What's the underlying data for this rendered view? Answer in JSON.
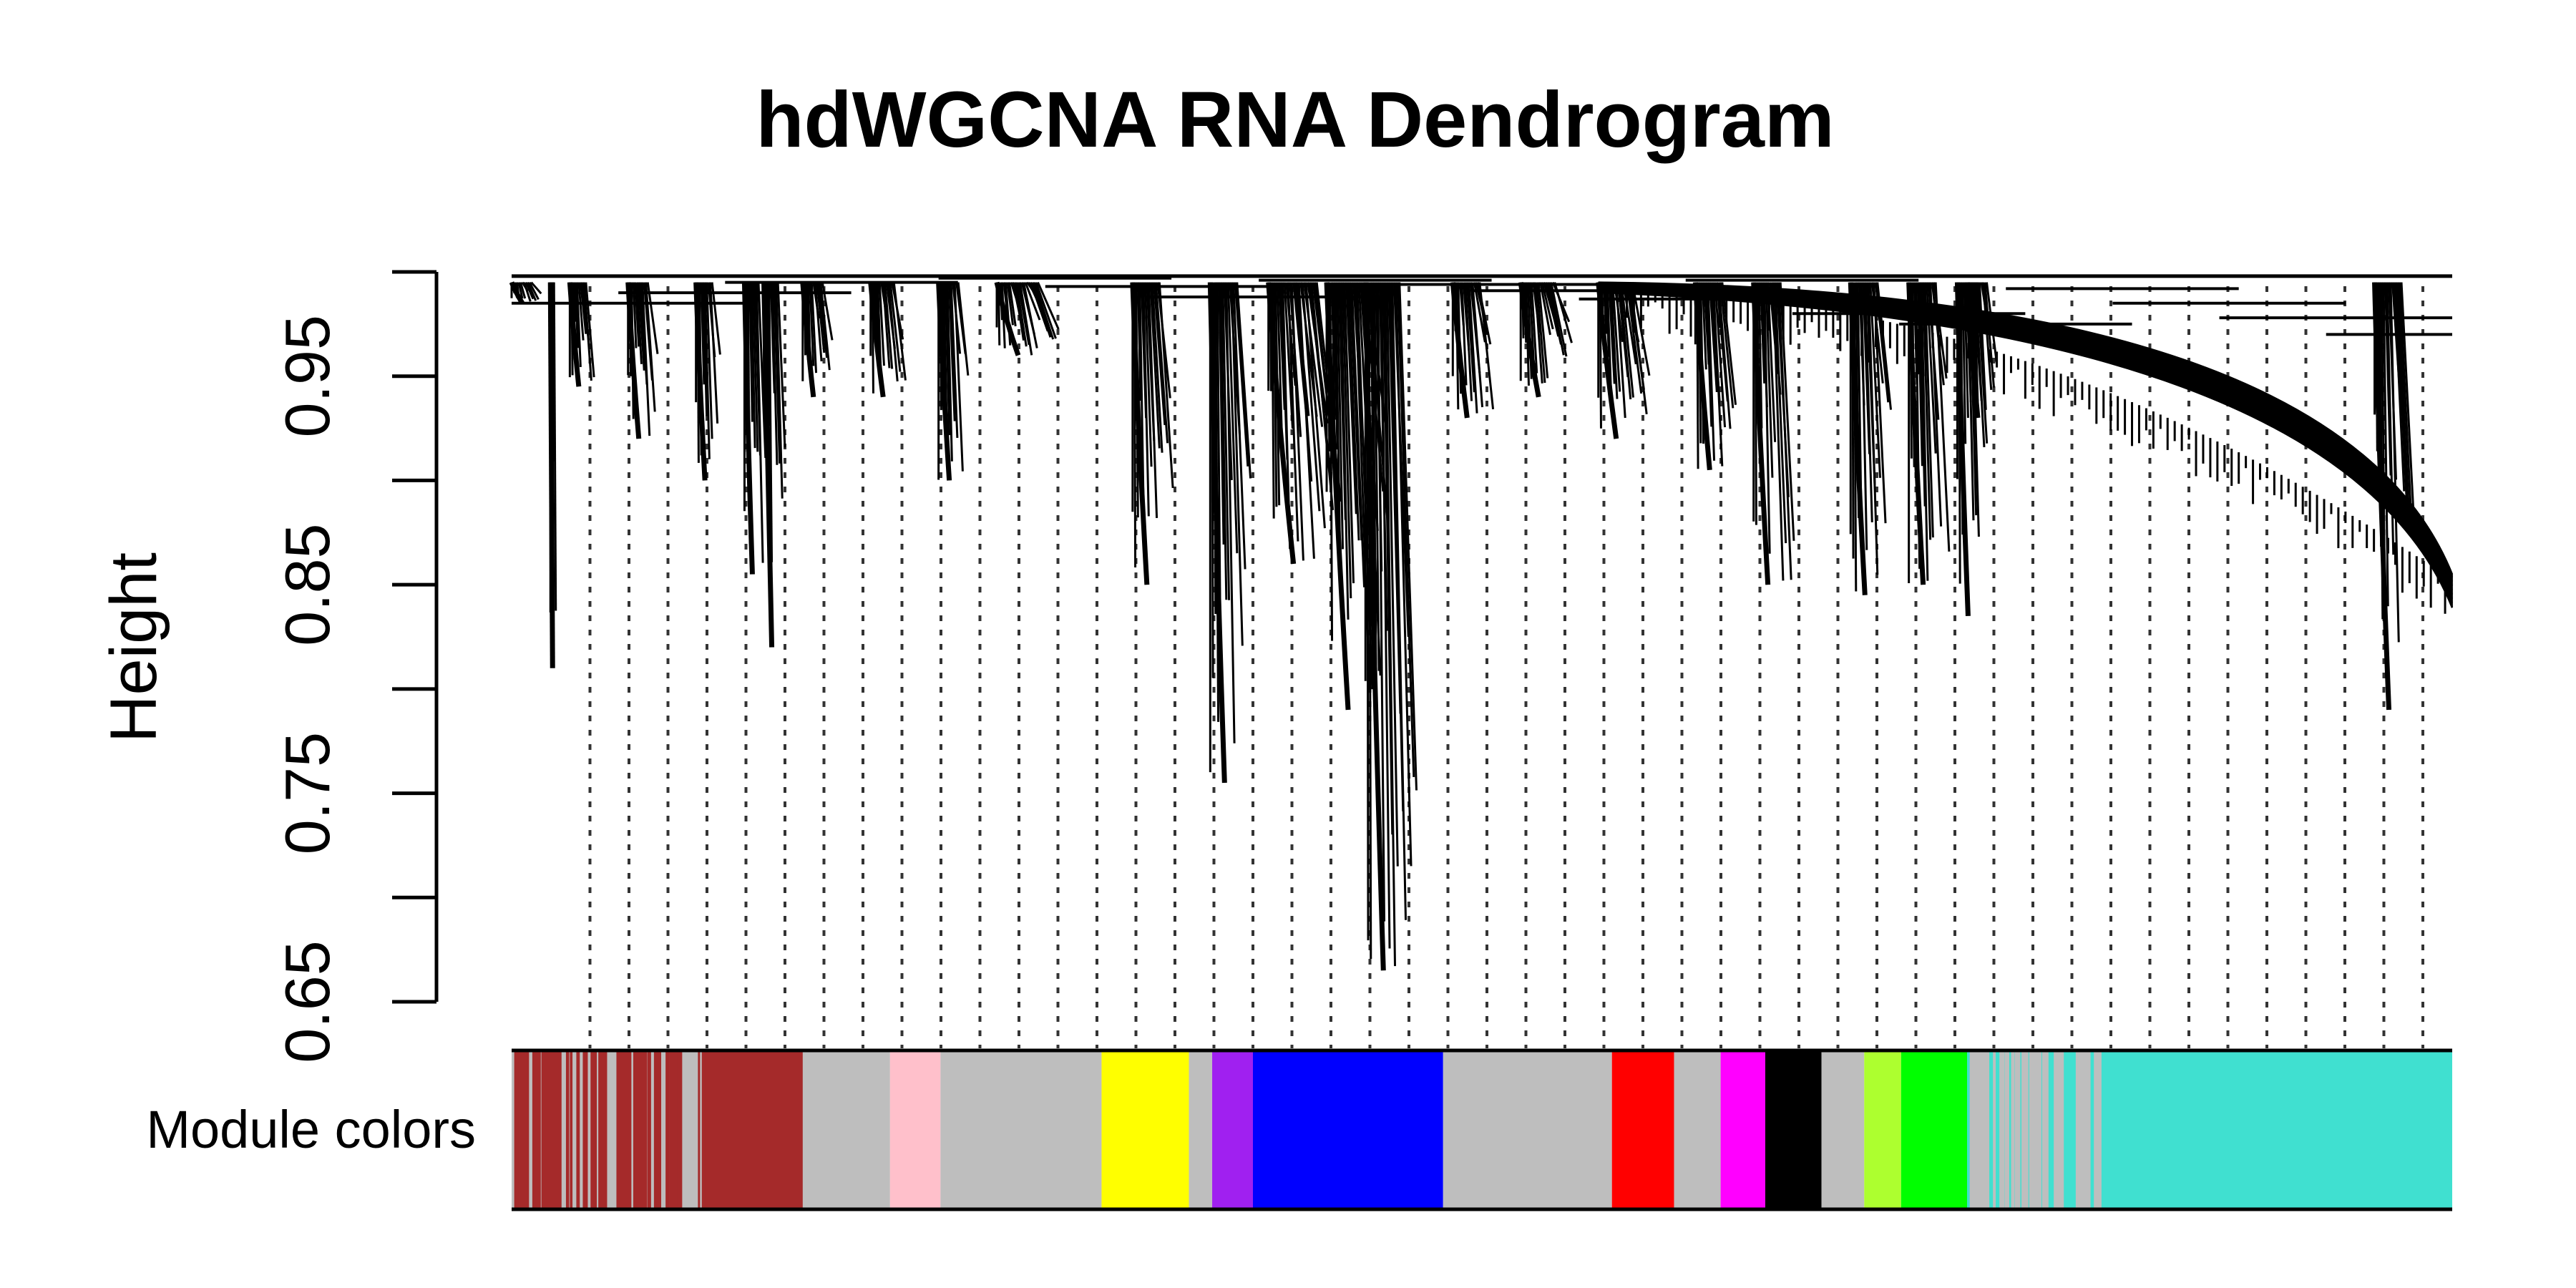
{
  "chart_data": {
    "type": "dendrogram",
    "title": "hdWGCNA RNA Dendrogram",
    "ylabel": "Height",
    "ylim": [
      0.65,
      1.0
    ],
    "yticks": [
      {
        "value": 0.65,
        "label": "0.65"
      },
      {
        "value": 0.7,
        "label": ""
      },
      {
        "value": 0.75,
        "label": "0.75"
      },
      {
        "value": 0.8,
        "label": ""
      },
      {
        "value": 0.85,
        "label": "0.85"
      },
      {
        "value": 0.9,
        "label": ""
      },
      {
        "value": 0.95,
        "label": "0.95"
      },
      {
        "value": 1.0,
        "label": ""
      }
    ],
    "module_colors_label": "Module colors",
    "n_leaves": 1000,
    "module_bar": [
      {
        "color": "#bebebe",
        "start": 0,
        "end": 150,
        "mixed_with": "#a52a2a",
        "mix_density": 0.35
      },
      {
        "color": "#a52a2a",
        "start": 100,
        "end": 150
      },
      {
        "color": "#bebebe",
        "start": 150,
        "end": 195
      },
      {
        "color": "#ffc0cb",
        "start": 195,
        "end": 221
      },
      {
        "color": "#bebebe",
        "start": 221,
        "end": 304
      },
      {
        "color": "#ffff00",
        "start": 304,
        "end": 349
      },
      {
        "color": "#bebebe",
        "start": 349,
        "end": 361
      },
      {
        "color": "#a020f0",
        "start": 361,
        "end": 382
      },
      {
        "color": "#0000ff",
        "start": 382,
        "end": 480
      },
      {
        "color": "#bebebe",
        "start": 480,
        "end": 567
      },
      {
        "color": "#ff0000",
        "start": 567,
        "end": 599
      },
      {
        "color": "#bebebe",
        "start": 599,
        "end": 623
      },
      {
        "color": "#ff00ff",
        "start": 623,
        "end": 646
      },
      {
        "color": "#000000",
        "start": 646,
        "end": 675
      },
      {
        "color": "#bebebe",
        "start": 675,
        "end": 697
      },
      {
        "color": "#adff2f",
        "start": 697,
        "end": 716
      },
      {
        "color": "#00ff00",
        "start": 716,
        "end": 750
      },
      {
        "color": "#40e0d0",
        "start": 750,
        "end": 1000,
        "mixed_with": "#bebebe",
        "mix_density": 0.3,
        "mix_until": 820
      }
    ],
    "branches": [
      {
        "leaf": 0,
        "width": 30,
        "bottom": 0.985
      },
      {
        "leaf": 20,
        "width": 6,
        "bottom": 0.81
      },
      {
        "leaf": 30,
        "width": 25,
        "bottom": 0.945
      },
      {
        "leaf": 60,
        "width": 30,
        "bottom": 0.92
      },
      {
        "leaf": 95,
        "width": 25,
        "bottom": 0.9
      },
      {
        "leaf": 120,
        "width": 22,
        "bottom": 0.855
      },
      {
        "leaf": 130,
        "width": 22,
        "bottom": 0.82
      },
      {
        "leaf": 150,
        "width": 30,
        "bottom": 0.94
      },
      {
        "leaf": 185,
        "width": 35,
        "bottom": 0.94
      },
      {
        "leaf": 220,
        "width": 30,
        "bottom": 0.9
      },
      {
        "leaf": 250,
        "width": 60,
        "bottom": 0.96
      },
      {
        "leaf": 320,
        "width": 40,
        "bottom": 0.85
      },
      {
        "leaf": 360,
        "width": 40,
        "bottom": 0.755
      },
      {
        "leaf": 390,
        "width": 70,
        "bottom": 0.86
      },
      {
        "leaf": 420,
        "width": 60,
        "bottom": 0.79
      },
      {
        "leaf": 440,
        "width": 50,
        "bottom": 0.665
      },
      {
        "leaf": 485,
        "width": 40,
        "bottom": 0.93
      },
      {
        "leaf": 520,
        "width": 50,
        "bottom": 0.94
      },
      {
        "leaf": 560,
        "width": 50,
        "bottom": 0.92
      },
      {
        "leaf": 610,
        "width": 40,
        "bottom": 0.905
      },
      {
        "leaf": 640,
        "width": 40,
        "bottom": 0.85
      },
      {
        "leaf": 690,
        "width": 40,
        "bottom": 0.845
      },
      {
        "leaf": 720,
        "width": 40,
        "bottom": 0.85
      },
      {
        "leaf": 745,
        "width": 30,
        "bottom": 0.835
      },
      {
        "leaf": 750,
        "width": 30,
        "bottom": 0.93
      },
      {
        "leaf": 960,
        "width": 40,
        "bottom": 0.79
      }
    ],
    "merge_heights": [
      0.985,
      0.99,
      0.995,
      0.998,
      0.997,
      0.993,
      0.988,
      0.996,
      0.994,
      0.991,
      0.987,
      0.996,
      0.98,
      0.975,
      0.992,
      0.985,
      0.978,
      0.97
    ],
    "curve_segments": [
      {
        "from_leaf": 560,
        "to_leaf": 1000,
        "top": 0.995,
        "bottom": 0.855
      }
    ]
  }
}
